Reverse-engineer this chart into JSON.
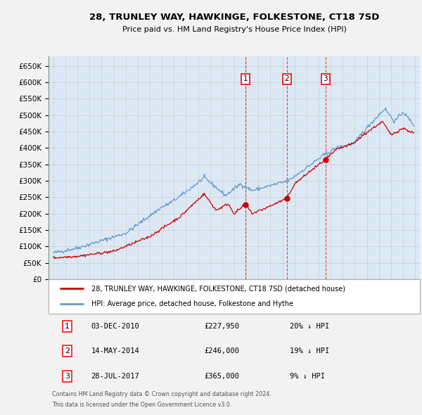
{
  "title": "28, TRUNLEY WAY, HAWKINGE, FOLKESTONE, CT18 7SD",
  "subtitle": "Price paid vs. HM Land Registry's House Price Index (HPI)",
  "ylim": [
    0,
    680000
  ],
  "yticks": [
    0,
    50000,
    100000,
    150000,
    200000,
    250000,
    300000,
    350000,
    400000,
    450000,
    500000,
    550000,
    600000,
    650000
  ],
  "ytick_labels": [
    "£0",
    "£50K",
    "£100K",
    "£150K",
    "£200K",
    "£250K",
    "£300K",
    "£350K",
    "£400K",
    "£450K",
    "£500K",
    "£550K",
    "£600K",
    "£650K"
  ],
  "xlim_start": 1994.6,
  "xlim_end": 2025.4,
  "transactions": [
    {
      "date": "03-DEC-2010",
      "year": 2010.92,
      "price": 227950,
      "label": "1",
      "pct": "20%",
      "dir": "↓"
    },
    {
      "date": "14-MAY-2014",
      "year": 2014.37,
      "price": 246000,
      "label": "2",
      "pct": "19%",
      "dir": "↓"
    },
    {
      "date": "28-JUL-2017",
      "year": 2017.57,
      "price": 365000,
      "label": "3",
      "pct": "9%",
      "dir": "↓"
    }
  ],
  "legend_property": "28, TRUNLEY WAY, HAWKINGE, FOLKESTONE, CT18 7SD (detached house)",
  "legend_hpi": "HPI: Average price, detached house, Folkestone and Hythe",
  "footer1": "Contains HM Land Registry data © Crown copyright and database right 2024.",
  "footer2": "This data is licensed under the Open Government Licence v3.0.",
  "property_color": "#cc0000",
  "hpi_color": "#6699cc",
  "background_color": "#dce9f5",
  "grid_color": "#cccccc",
  "fig_bg": "#f2f2f2"
}
